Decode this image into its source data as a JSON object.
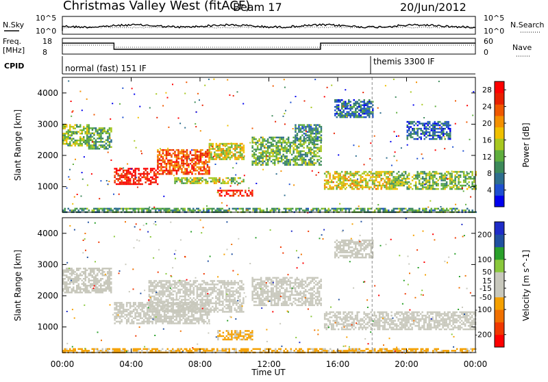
{
  "header": {
    "title": "Christmas Valley West (fitACF)",
    "beam": "Beam 17",
    "date": "20/Jun/2012"
  },
  "noise_panel": {
    "left_label": "N.Sky",
    "right_label": "N.Search",
    "left_ticks": [
      "10^5",
      "10^0"
    ],
    "right_ticks": [
      "10^5",
      "10^0"
    ]
  },
  "freq_panel": {
    "left_label_line1": "Freq.",
    "left_label_line2": "[MHz]",
    "right_label": "Nave",
    "left_ticks": [
      "18",
      "8"
    ],
    "right_ticks": [
      "60",
      "0"
    ]
  },
  "cpid_panel": {
    "label": "CPID",
    "modes": [
      {
        "name": "normal (fast) 151 IF",
        "start": "00:00"
      },
      {
        "name": "themis 3300 IF",
        "start": "18:00"
      }
    ]
  },
  "x_axis": {
    "label": "Time UT",
    "ticks": [
      "00:00",
      "04:00",
      "08:00",
      "12:00",
      "16:00",
      "20:00",
      "00:00"
    ]
  },
  "chart_data": [
    {
      "type": "heatmap",
      "name": "power",
      "ylabel": "Slant Range [km]",
      "yticks": [
        1000,
        2000,
        3000,
        4000
      ],
      "ylim": [
        180,
        4500
      ],
      "xlim_hours": [
        0,
        24
      ],
      "colorbar": {
        "label": "Power [dB]",
        "ticks": [
          4,
          8,
          12,
          16,
          20,
          24,
          28
        ],
        "range": [
          0,
          30
        ],
        "colors": [
          "#0000ee",
          "#1e4fd0",
          "#2e6e8e",
          "#3d8a5a",
          "#5fae3e",
          "#a8c820",
          "#f0c000",
          "#f49000",
          "#f05800",
          "#e82000",
          "#ff0000"
        ]
      },
      "regions": [
        {
          "t": [
            0,
            1.5
          ],
          "r": [
            2300,
            3000
          ],
          "level": 14
        },
        {
          "t": [
            1.5,
            2.8
          ],
          "r": [
            2200,
            2900
          ],
          "level": 11
        },
        {
          "t": [
            3.0,
            5.5
          ],
          "r": [
            1100,
            1600
          ],
          "level": 28
        },
        {
          "t": [
            5.5,
            8.5
          ],
          "r": [
            1400,
            2200
          ],
          "level": 24
        },
        {
          "t": [
            8.5,
            10.5
          ],
          "r": [
            1900,
            2400
          ],
          "level": 16
        },
        {
          "t": [
            6.5,
            10.5
          ],
          "r": [
            1100,
            1300
          ],
          "level": 15
        },
        {
          "t": [
            9.0,
            11.0
          ],
          "r": [
            700,
            900
          ],
          "level": 27
        },
        {
          "t": [
            11.0,
            15.0
          ],
          "r": [
            1700,
            2600
          ],
          "level": 12
        },
        {
          "t": [
            13.5,
            15.0
          ],
          "r": [
            2500,
            3000
          ],
          "level": 9
        },
        {
          "t": [
            15.8,
            18.0
          ],
          "r": [
            3200,
            3800
          ],
          "level": 7
        },
        {
          "t": [
            15.2,
            19.0
          ],
          "r": [
            900,
            1500
          ],
          "level": 17
        },
        {
          "t": [
            19.0,
            24.0
          ],
          "r": [
            900,
            1500
          ],
          "level": 13
        },
        {
          "t": [
            20.0,
            22.5
          ],
          "r": [
            2500,
            3100
          ],
          "level": 6
        },
        {
          "t": [
            0,
            24
          ],
          "r": [
            180,
            320
          ],
          "level": 10
        }
      ]
    },
    {
      "type": "heatmap",
      "name": "velocity",
      "ylabel": "Slant Range [km]",
      "yticks": [
        1000,
        2000,
        3000,
        4000
      ],
      "ylim": [
        180,
        4500
      ],
      "xlim_hours": [
        0,
        24
      ],
      "colorbar": {
        "label": "Velocity [m s^-1]",
        "ticks": [
          -200,
          -100,
          -50,
          -15,
          15,
          50,
          100,
          200
        ],
        "range": [
          -250,
          250
        ],
        "colors": [
          "#ff0000",
          "#f03800",
          "#f07000",
          "#f5a000",
          "#c8c8bc",
          "#c8c8bc",
          "#8ac83c",
          "#2aa02a",
          "#2050a0",
          "#1e2cc8"
        ]
      },
      "regions": [
        {
          "t": [
            0,
            2.8
          ],
          "r": [
            2100,
            2900
          ],
          "level": 0
        },
        {
          "t": [
            3.0,
            8.5
          ],
          "r": [
            1100,
            1800
          ],
          "level": 0
        },
        {
          "t": [
            5.0,
            10.5
          ],
          "r": [
            1500,
            2500
          ],
          "level": -20
        },
        {
          "t": [
            9.0,
            11.0
          ],
          "r": [
            600,
            900
          ],
          "level": -60
        },
        {
          "t": [
            11.0,
            15.0
          ],
          "r": [
            1700,
            2600
          ],
          "level": 0
        },
        {
          "t": [
            15.2,
            24.0
          ],
          "r": [
            900,
            1500
          ],
          "level": 0
        },
        {
          "t": [
            15.8,
            18.0
          ],
          "r": [
            3200,
            3800
          ],
          "level": 0
        },
        {
          "t": [
            0,
            24
          ],
          "r": [
            180,
            320
          ],
          "level": -60
        }
      ]
    }
  ]
}
